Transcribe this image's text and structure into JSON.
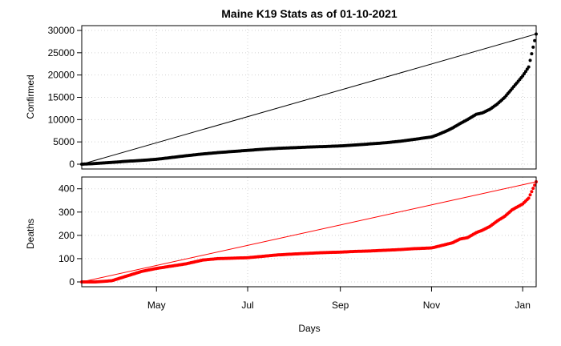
{
  "chart_data": {
    "type": "scatter",
    "title": "Maine K19 Stats as of 01-10-2021",
    "xlabel": "Days",
    "x_range": [
      "2020-03-12",
      "2021-01-10"
    ],
    "x_ticks": [
      {
        "label": "May",
        "date": "2020-05-01"
      },
      {
        "label": "Jul",
        "date": "2020-07-01"
      },
      {
        "label": "Sep",
        "date": "2020-09-01"
      },
      {
        "label": "Nov",
        "date": "2020-11-01"
      },
      {
        "label": "Jan",
        "date": "2021-01-01"
      }
    ],
    "grid": true,
    "panels": [
      {
        "ylabel": "Confirmed",
        "color": "#000000",
        "ylim": [
          0,
          30000
        ],
        "yticks": [
          0,
          5000,
          10000,
          15000,
          20000,
          25000,
          30000
        ],
        "trend_line": {
          "from": [
            "2020-03-12",
            0
          ],
          "to": [
            "2021-01-10",
            29200
          ]
        },
        "series": [
          {
            "x": [
              "2020-03-12",
              "2020-03-21",
              "2020-04-01",
              "2020-04-11",
              "2020-04-21",
              "2020-05-01",
              "2020-05-11",
              "2020-05-21",
              "2020-06-01",
              "2020-06-11",
              "2020-06-21",
              "2020-07-01",
              "2020-07-11",
              "2020-07-21",
              "2020-08-01",
              "2020-08-11",
              "2020-08-21",
              "2020-09-01",
              "2020-09-11",
              "2020-09-21",
              "2020-10-01",
              "2020-10-11",
              "2020-10-21",
              "2020-11-01",
              "2020-11-05",
              "2020-11-10",
              "2020-11-15",
              "2020-11-20",
              "2020-11-25",
              "2020-12-01",
              "2020-12-05",
              "2020-12-10",
              "2020-12-15",
              "2020-12-20",
              "2020-12-25",
              "2021-01-01",
              "2021-01-05",
              "2021-01-10"
            ],
            "y": [
              0,
              150,
              400,
              650,
              850,
              1100,
              1500,
              1900,
              2300,
              2600,
              2850,
              3100,
              3350,
              3550,
              3700,
              3850,
              3950,
              4100,
              4300,
              4550,
              4800,
              5150,
              5600,
              6100,
              6600,
              7300,
              8100,
              9100,
              10000,
              11200,
              11500,
              12300,
              13500,
              15000,
              17000,
              19800,
              21800,
              29200
            ]
          }
        ]
      },
      {
        "ylabel": "Deaths",
        "color": "#ff0000",
        "ylim": [
          0,
          430
        ],
        "yticks": [
          0,
          100,
          200,
          300,
          400
        ],
        "trend_line": {
          "from": [
            "2020-03-12",
            0
          ],
          "to": [
            "2021-01-10",
            430
          ]
        },
        "series": [
          {
            "x": [
              "2020-03-12",
              "2020-03-21",
              "2020-04-01",
              "2020-04-11",
              "2020-04-21",
              "2020-05-01",
              "2020-05-11",
              "2020-05-21",
              "2020-06-01",
              "2020-06-11",
              "2020-06-21",
              "2020-07-01",
              "2020-07-11",
              "2020-07-21",
              "2020-08-01",
              "2020-08-11",
              "2020-08-21",
              "2020-09-01",
              "2020-09-11",
              "2020-09-21",
              "2020-10-01",
              "2020-10-11",
              "2020-10-21",
              "2020-11-01",
              "2020-11-05",
              "2020-11-10",
              "2020-11-15",
              "2020-11-20",
              "2020-11-25",
              "2020-12-01",
              "2020-12-05",
              "2020-12-10",
              "2020-12-15",
              "2020-12-20",
              "2020-12-25",
              "2021-01-01",
              "2021-01-05",
              "2021-01-10"
            ],
            "y": [
              0,
              0,
              5,
              25,
              45,
              58,
              68,
              78,
              94,
              100,
              102,
              104,
              110,
              116,
              120,
              123,
              126,
              128,
              131,
              133,
              136,
              139,
              143,
              146,
              152,
              160,
              168,
              184,
              190,
              212,
              222,
              238,
              262,
              282,
              310,
              335,
              360,
              430
            ]
          }
        ]
      }
    ]
  }
}
